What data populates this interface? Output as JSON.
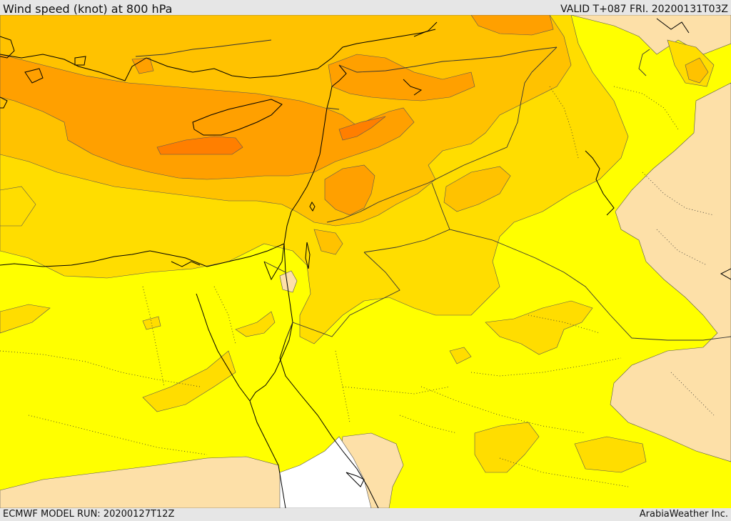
{
  "header": {
    "title": "Wind speed (knot) at 800 hPa",
    "valid": "VALID T+087 FRI. 20200131T03Z"
  },
  "footer": {
    "model_run": "ECMWF MODEL RUN: 20200127T12Z",
    "credit": "ArabiaWeather Inc."
  },
  "colors": {
    "lt10": "#ffffff",
    "b10_15": "#fde0a8",
    "b15_20": "#ffff00",
    "b20_25": "#ffdd00",
    "b25_30": "#ffc200",
    "b30_35": "#ffa000",
    "b35_40": "#ff7f00",
    "coast": "#000000",
    "border": "#333333",
    "contour": "#555555"
  }
}
